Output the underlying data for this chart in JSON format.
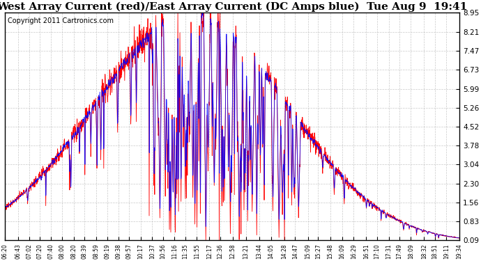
{
  "title": "West Array Current (red)/East Array Current (DC Amps blue)  Tue Aug 9  19:41",
  "copyright": "Copyright 2011 Cartronics.com",
  "yticks": [
    0.09,
    0.83,
    1.56,
    2.3,
    3.04,
    3.78,
    4.52,
    5.26,
    5.99,
    6.73,
    7.47,
    8.21,
    8.95
  ],
  "ymin": 0.09,
  "ymax": 8.95,
  "xtick_labels": [
    "06:20",
    "06:43",
    "07:02",
    "07:20",
    "07:40",
    "08:00",
    "08:20",
    "08:39",
    "08:59",
    "09:19",
    "09:38",
    "09:57",
    "10:17",
    "10:37",
    "10:56",
    "11:16",
    "11:35",
    "11:55",
    "12:17",
    "12:36",
    "12:58",
    "13:21",
    "13:44",
    "14:05",
    "14:28",
    "14:47",
    "15:09",
    "15:27",
    "15:48",
    "16:09",
    "16:29",
    "16:51",
    "17:10",
    "17:31",
    "17:49",
    "18:09",
    "18:32",
    "18:51",
    "19:11",
    "19:34"
  ],
  "background_color": "#ffffff",
  "plot_bg_color": "#ffffff",
  "grid_color": "#bbbbbb",
  "red_color": "#ff0000",
  "blue_color": "#0000ff",
  "title_fontsize": 11,
  "copyright_fontsize": 7
}
